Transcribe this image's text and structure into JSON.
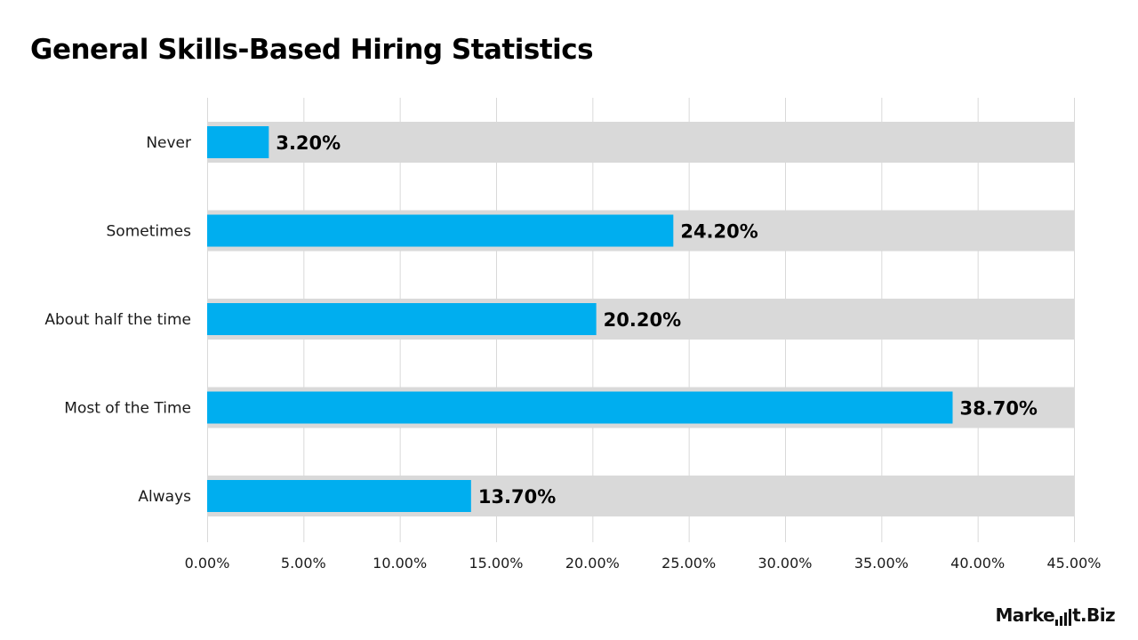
{
  "title": "General Skills-Based Hiring Statistics",
  "brand": {
    "text_a": "Marke",
    "text_b": "t.Biz"
  },
  "colors": {
    "bar": "#00AEEF",
    "track": "#D9D9D9",
    "grid": "#D9D9D9",
    "text": "#000000"
  },
  "chart_data": {
    "type": "bar",
    "orientation": "horizontal",
    "categories": [
      "Never",
      "Sometimes",
      "About half the time",
      "Most of the Time",
      "Always"
    ],
    "values": [
      3.2,
      24.2,
      20.2,
      38.7,
      13.7
    ],
    "data_labels": [
      "3.20%",
      "24.20%",
      "20.20%",
      "38.70%",
      "13.70%"
    ],
    "xlim": [
      0,
      45
    ],
    "xticks": [
      "0.00%",
      "5.00%",
      "10.00%",
      "15.00%",
      "20.00%",
      "25.00%",
      "30.00%",
      "35.00%",
      "40.00%",
      "45.00%"
    ],
    "xlabel": "",
    "ylabel": "",
    "grid": true,
    "legend": "none"
  }
}
